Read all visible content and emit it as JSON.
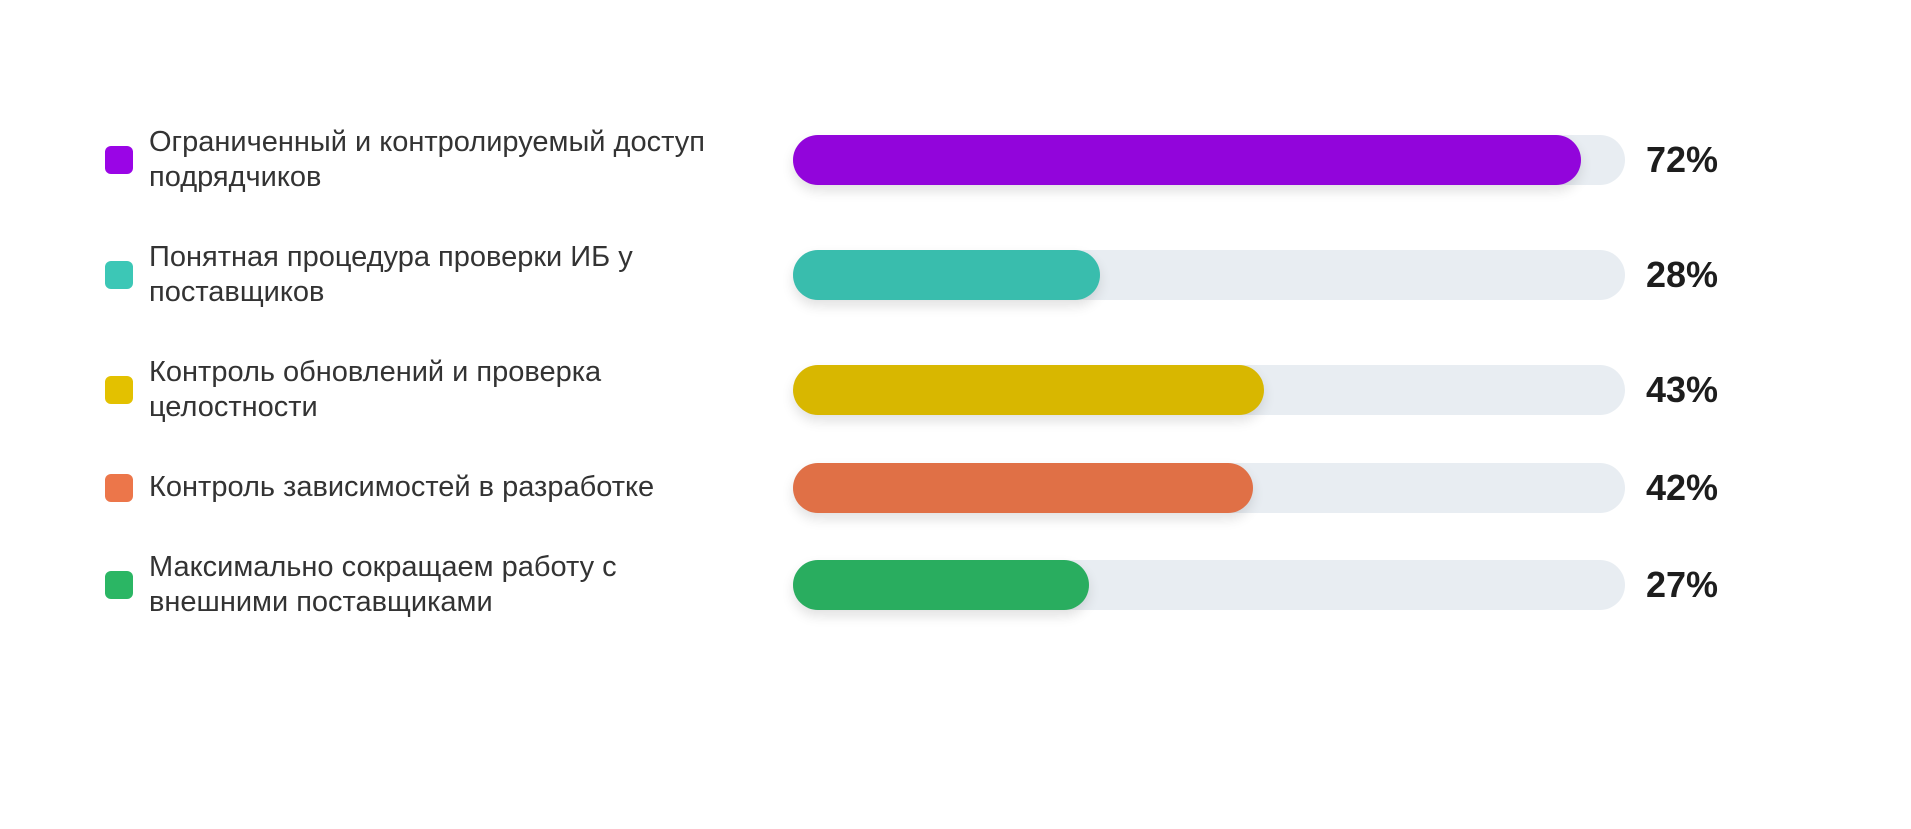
{
  "chart_data": {
    "type": "bar",
    "orientation": "horizontal",
    "categories": [
      "Ограниченный и контролируемый доступ подрядчиков",
      "Понятная процедура проверки ИБ у поставщиков",
      "Контроль обновлений и проверка целостности",
      "Контроль зависимостей в разработке",
      "Максимально сокращаем работу с внешними поставщиками"
    ],
    "values": [
      72,
      28,
      43,
      42,
      27
    ],
    "value_labels": [
      "72%",
      "28%",
      "43%",
      "42%",
      "27%"
    ],
    "colors": [
      "#9a05e6",
      "#3cc7b6",
      "#e3c100",
      "#ec764a",
      "#2bb664"
    ],
    "xlim": [
      0,
      76
    ]
  }
}
